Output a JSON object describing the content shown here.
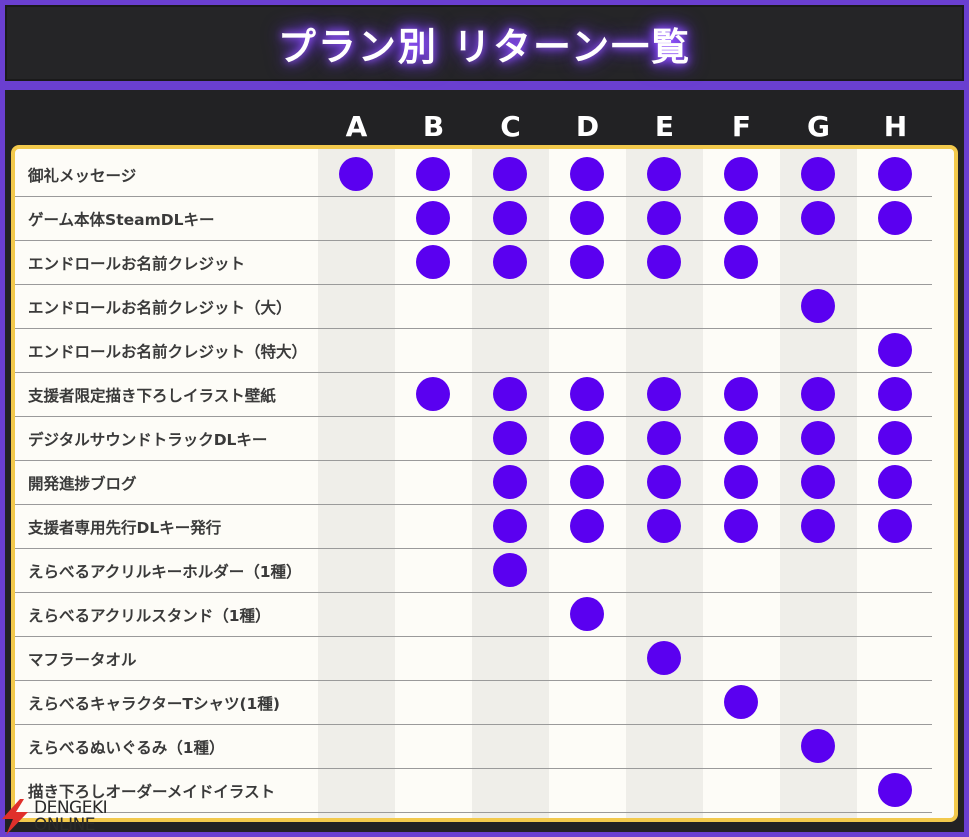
{
  "title": "プラン別 リターン一覧",
  "columns": [
    "A",
    "B",
    "C",
    "D",
    "E",
    "F",
    "G",
    "H"
  ],
  "rows": [
    {
      "label": "御礼メッセージ",
      "plans": [
        1,
        1,
        1,
        1,
        1,
        1,
        1,
        1
      ]
    },
    {
      "label": "ゲーム本体SteamDLキー",
      "plans": [
        0,
        1,
        1,
        1,
        1,
        1,
        1,
        1
      ]
    },
    {
      "label": "エンドロールお名前クレジット",
      "plans": [
        0,
        1,
        1,
        1,
        1,
        1,
        0,
        0
      ]
    },
    {
      "label": "エンドロールお名前クレジット（大）",
      "plans": [
        0,
        0,
        0,
        0,
        0,
        0,
        1,
        0
      ]
    },
    {
      "label": "エンドロールお名前クレジット（特大）",
      "plans": [
        0,
        0,
        0,
        0,
        0,
        0,
        0,
        1
      ]
    },
    {
      "label": "支援者限定描き下ろしイラスト壁紙",
      "plans": [
        0,
        1,
        1,
        1,
        1,
        1,
        1,
        1
      ]
    },
    {
      "label": "デジタルサウンドトラックDLキー",
      "plans": [
        0,
        0,
        1,
        1,
        1,
        1,
        1,
        1
      ]
    },
    {
      "label": "開発進捗ブログ",
      "plans": [
        0,
        0,
        1,
        1,
        1,
        1,
        1,
        1
      ]
    },
    {
      "label": "支援者専用先行DLキー発行",
      "plans": [
        0,
        0,
        1,
        1,
        1,
        1,
        1,
        1
      ]
    },
    {
      "label": "えらべるアクリルキーホルダー（1種）",
      "plans": [
        0,
        0,
        1,
        0,
        0,
        0,
        0,
        0
      ]
    },
    {
      "label": "えらべるアクリルスタンド（1種）",
      "plans": [
        0,
        0,
        0,
        1,
        0,
        0,
        0,
        0
      ]
    },
    {
      "label": "マフラータオル",
      "plans": [
        0,
        0,
        0,
        0,
        1,
        0,
        0,
        0
      ]
    },
    {
      "label": "えらべるキャラクターTシャツ(1種)",
      "plans": [
        0,
        0,
        0,
        0,
        0,
        1,
        0,
        0
      ]
    },
    {
      "label": "えらべるぬいぐるみ（1種）",
      "plans": [
        0,
        0,
        0,
        0,
        0,
        0,
        1,
        0
      ]
    },
    {
      "label": "描き下ろしオーダーメイドイラスト",
      "plans": [
        0,
        0,
        0,
        0,
        0,
        0,
        0,
        1
      ]
    }
  ],
  "logo": {
    "line1": "DENGEKI",
    "line2": "ONLINE"
  },
  "colors": {
    "dot": "#5a00f0",
    "accent": "#6a3fd0",
    "border": "#f2c94c"
  }
}
